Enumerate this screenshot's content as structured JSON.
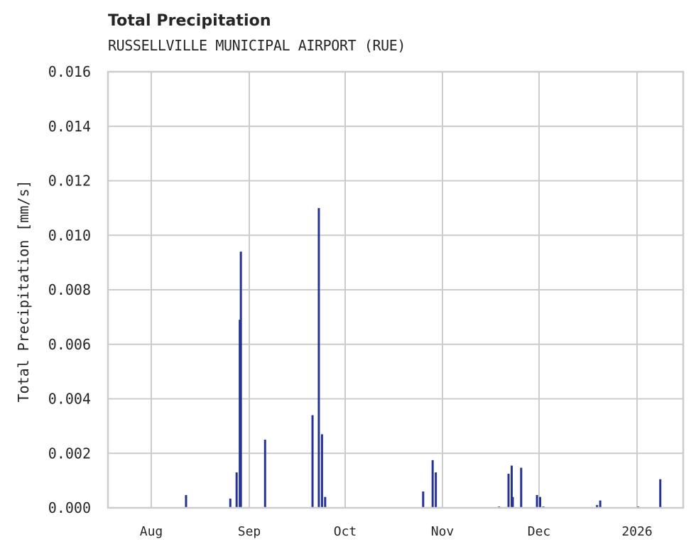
{
  "header": {
    "title": "Total Precipitation",
    "subtitle": "RUSSELLVILLE MUNICIPAL AIRPORT (RUE)"
  },
  "colors": {
    "series": "#253494",
    "grid": "#cccccc",
    "text": "#262626",
    "background": "#ffffff"
  },
  "chart_data": {
    "type": "bar",
    "title": "Total Precipitation",
    "subtitle": "RUSSELLVILLE MUNICIPAL AIRPORT (RUE)",
    "xlabel": "",
    "ylabel": "Total Precipitation [mm/s]",
    "ylim": [
      0,
      0.016
    ],
    "yticks": [
      "0.000",
      "0.002",
      "0.004",
      "0.006",
      "0.008",
      "0.010",
      "0.012",
      "0.014",
      "0.016"
    ],
    "xticks": [
      "Aug",
      "Sep",
      "Oct",
      "Nov",
      "Dec",
      "2026"
    ],
    "xrange": [
      "2025-07-18",
      "2026-01-15"
    ],
    "grid": true,
    "legend": null,
    "series": [
      {
        "name": "Total Precipitation",
        "points": [
          {
            "date": "2025-08-12",
            "value": 0.00047
          },
          {
            "date": "2025-08-26",
            "value": 0.00034
          },
          {
            "date": "2025-08-28",
            "value": 0.0013
          },
          {
            "date": "2025-08-29",
            "value": 0.0069
          },
          {
            "date": "2025-08-29",
            "value": 0.0094
          },
          {
            "date": "2025-09-06",
            "value": 0.0025
          },
          {
            "date": "2025-09-21",
            "value": 0.0034
          },
          {
            "date": "2025-09-23",
            "value": 0.011
          },
          {
            "date": "2025-09-24",
            "value": 0.0027
          },
          {
            "date": "2025-09-25",
            "value": 0.0004
          },
          {
            "date": "2025-10-26",
            "value": 0.0006
          },
          {
            "date": "2025-10-29",
            "value": 0.00175
          },
          {
            "date": "2025-10-30",
            "value": 0.0013
          },
          {
            "date": "2025-11-19",
            "value": 5e-05
          },
          {
            "date": "2025-11-22",
            "value": 0.00125
          },
          {
            "date": "2025-11-23",
            "value": 0.00155
          },
          {
            "date": "2025-11-23",
            "value": 0.0004
          },
          {
            "date": "2025-11-26",
            "value": 0.00147
          },
          {
            "date": "2025-12-01",
            "value": 0.00047
          },
          {
            "date": "2025-12-02",
            "value": 0.0004
          },
          {
            "date": "2025-12-03",
            "value": 5e-05
          },
          {
            "date": "2025-12-20",
            "value": 0.0001
          },
          {
            "date": "2025-12-21",
            "value": 0.00027
          },
          {
            "date": "2026-01-02",
            "value": 5e-05
          },
          {
            "date": "2026-01-09",
            "value": 0.00105
          }
        ]
      }
    ]
  }
}
